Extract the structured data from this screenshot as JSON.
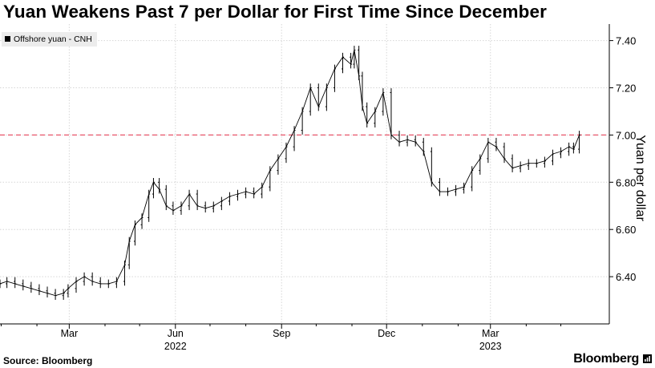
{
  "title": "Yuan Weakens Past 7 per Dollar for First Time Since December",
  "source": "Source: Bloomberg",
  "brand": "Bloomberg",
  "colors": {
    "series": "#000000",
    "reference_line": "#e8566b",
    "grid": "#d6d6d6",
    "legend_bg": "#ececec"
  },
  "chart_data": {
    "type": "line",
    "style": "ohlc-bars",
    "series": [
      {
        "name": "Offshore yuan - CNH",
        "points": [
          [
            "2021-12-31",
            6.37
          ],
          [
            "2022-01-06",
            6.38
          ],
          [
            "2022-01-13",
            6.37
          ],
          [
            "2022-01-20",
            6.36
          ],
          [
            "2022-01-27",
            6.35
          ],
          [
            "2022-02-03",
            6.34
          ],
          [
            "2022-02-10",
            6.33
          ],
          [
            "2022-02-17",
            6.32
          ],
          [
            "2022-02-24",
            6.33
          ],
          [
            "2022-02-28",
            6.35
          ],
          [
            "2022-03-07",
            6.38
          ],
          [
            "2022-03-14",
            6.4
          ],
          [
            "2022-03-21",
            6.38
          ],
          [
            "2022-03-28",
            6.37
          ],
          [
            "2022-04-04",
            6.37
          ],
          [
            "2022-04-11",
            6.38
          ],
          [
            "2022-04-18",
            6.45
          ],
          [
            "2022-04-22",
            6.55
          ],
          [
            "2022-04-27",
            6.62
          ],
          [
            "2022-05-03",
            6.65
          ],
          [
            "2022-05-09",
            6.75
          ],
          [
            "2022-05-13",
            6.8
          ],
          [
            "2022-05-18",
            6.77
          ],
          [
            "2022-05-24",
            6.7
          ],
          [
            "2022-05-30",
            6.68
          ],
          [
            "2022-06-06",
            6.7
          ],
          [
            "2022-06-13",
            6.75
          ],
          [
            "2022-06-20",
            6.7
          ],
          [
            "2022-06-27",
            6.69
          ],
          [
            "2022-07-04",
            6.7
          ],
          [
            "2022-07-11",
            6.72
          ],
          [
            "2022-07-18",
            6.74
          ],
          [
            "2022-07-25",
            6.75
          ],
          [
            "2022-08-01",
            6.76
          ],
          [
            "2022-08-08",
            6.75
          ],
          [
            "2022-08-15",
            6.78
          ],
          [
            "2022-08-22",
            6.85
          ],
          [
            "2022-08-29",
            6.9
          ],
          [
            "2022-09-05",
            6.95
          ],
          [
            "2022-09-12",
            7.02
          ],
          [
            "2022-09-19",
            7.1
          ],
          [
            "2022-09-26",
            7.2
          ],
          [
            "2022-10-03",
            7.12
          ],
          [
            "2022-10-10",
            7.2
          ],
          [
            "2022-10-17",
            7.28
          ],
          [
            "2022-10-24",
            7.33
          ],
          [
            "2022-10-31",
            7.3
          ],
          [
            "2022-11-03",
            7.36
          ],
          [
            "2022-11-07",
            7.25
          ],
          [
            "2022-11-10",
            7.12
          ],
          [
            "2022-11-14",
            7.05
          ],
          [
            "2022-11-21",
            7.1
          ],
          [
            "2022-11-28",
            7.18
          ],
          [
            "2022-12-05",
            7.0
          ],
          [
            "2022-12-12",
            6.97
          ],
          [
            "2022-12-19",
            6.98
          ],
          [
            "2022-12-26",
            6.97
          ],
          [
            "2023-01-02",
            6.93
          ],
          [
            "2023-01-09",
            6.8
          ],
          [
            "2023-01-16",
            6.76
          ],
          [
            "2023-01-23",
            6.76
          ],
          [
            "2023-01-30",
            6.77
          ],
          [
            "2023-02-06",
            6.78
          ],
          [
            "2023-02-13",
            6.85
          ],
          [
            "2023-02-20",
            6.9
          ],
          [
            "2023-02-27",
            6.97
          ],
          [
            "2023-03-06",
            6.95
          ],
          [
            "2023-03-13",
            6.9
          ],
          [
            "2023-03-20",
            6.86
          ],
          [
            "2023-03-27",
            6.87
          ],
          [
            "2023-04-03",
            6.88
          ],
          [
            "2023-04-10",
            6.88
          ],
          [
            "2023-04-17",
            6.89
          ],
          [
            "2023-04-24",
            6.92
          ],
          [
            "2023-05-01",
            6.93
          ],
          [
            "2023-05-08",
            6.95
          ],
          [
            "2023-05-12",
            6.94
          ],
          [
            "2023-05-17",
            7.0
          ]
        ]
      }
    ],
    "reference_line": {
      "y": 7.0,
      "style": "dashed"
    },
    "xlim": [
      "2021-12-31",
      "2023-06-12"
    ],
    "ylim": [
      6.2,
      7.47
    ],
    "y_ticks": [
      6.4,
      6.6,
      6.8,
      7.0,
      7.2,
      7.4
    ],
    "y_tick_labels": [
      "6.40",
      "6.60",
      "6.80",
      "7.00",
      "7.20",
      "7.40"
    ],
    "x_ticks": [
      {
        "date": "2022-03-01",
        "label": "Mar"
      },
      {
        "date": "2022-06-01",
        "label": "Jun"
      },
      {
        "date": "2022-09-01",
        "label": "Sep"
      },
      {
        "date": "2022-12-01",
        "label": "Dec"
      },
      {
        "date": "2023-03-01",
        "label": "Mar"
      }
    ],
    "x_minor_ticks": [
      "2022-01-01",
      "2022-02-01",
      "2022-04-01",
      "2022-05-01",
      "2022-07-01",
      "2022-08-01",
      "2022-10-01",
      "2022-11-01",
      "2023-01-01",
      "2023-02-01",
      "2023-04-01",
      "2023-05-01"
    ],
    "year_labels": [
      {
        "date": "2022-06-01",
        "label": "2022"
      },
      {
        "date": "2023-03-01",
        "label": "2023"
      }
    ],
    "ylabel": "Yuan per dollar",
    "y_axis_side": "right",
    "grid": true,
    "legend": "top-left"
  }
}
